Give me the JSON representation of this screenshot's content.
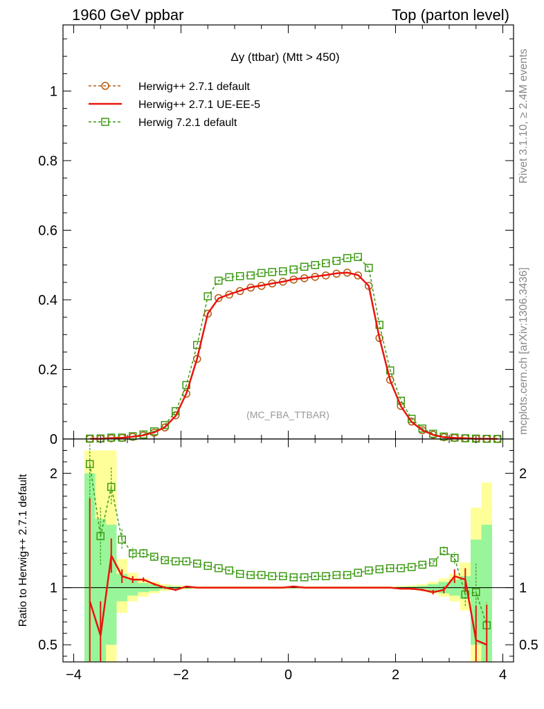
{
  "header": {
    "left": "1960 GeV ppbar",
    "right": "Top (parton level)"
  },
  "side_labels": {
    "rivet": "Rivet 3.1.10, ≥ 2.4M events",
    "source": "mcplots.cern.ch [arXiv:1306.3436]"
  },
  "chart_data": {
    "type": "line",
    "title": "Δy (ttbar) (Mtt > 450)",
    "watermark": "(MC_FBA_TTBAR)",
    "colors": {
      "default": "#b35a10",
      "ueee5": "#e8140c",
      "h7": "#3a9a10"
    },
    "legend": [
      "Herwig++ 2.7.1 default",
      "Herwig++ 2.7.1 UE-EE-5",
      "Herwig 7.2.1 default"
    ],
    "main": {
      "xlim": [
        -4.2,
        4.2
      ],
      "ylim": [
        0,
        1.19
      ],
      "yticks": [
        0,
        0.2,
        0.4,
        0.6,
        0.8,
        1
      ],
      "ytick_labels": [
        "0",
        "0.2",
        "0.4",
        "0.6",
        "0.8",
        "1"
      ],
      "x": [
        -3.7,
        -3.5,
        -3.3,
        -3.1,
        -2.9,
        -2.7,
        -2.5,
        -2.3,
        -2.1,
        -1.9,
        -1.7,
        -1.5,
        -1.3,
        -1.1,
        -0.9,
        -0.7,
        -0.5,
        -0.3,
        -0.1,
        0.1,
        0.3,
        0.5,
        0.7,
        0.9,
        1.1,
        1.3,
        1.5,
        1.7,
        1.9,
        2.1,
        2.3,
        2.5,
        2.7,
        2.9,
        3.1,
        3.3,
        3.5,
        3.7,
        3.9
      ],
      "series": [
        {
          "name": "Herwig++ 2.7.1 default",
          "style": "circle",
          "values": [
            0.0005,
            0.001,
            0.002,
            0.003,
            0.006,
            0.01,
            0.018,
            0.033,
            0.068,
            0.13,
            0.23,
            0.36,
            0.405,
            0.415,
            0.425,
            0.435,
            0.44,
            0.447,
            0.452,
            0.458,
            0.462,
            0.466,
            0.47,
            0.475,
            0.478,
            0.47,
            0.44,
            0.29,
            0.17,
            0.095,
            0.05,
            0.025,
            0.012,
            0.005,
            0.003,
            0.002,
            0.001,
            0.0005,
            0.0002
          ]
        },
        {
          "name": "Herwig++ 2.7.1 UE-EE-5",
          "style": "line",
          "values": [
            0.0004,
            0.0006,
            0.0025,
            0.0033,
            0.0064,
            0.0105,
            0.019,
            0.034,
            0.066,
            0.131,
            0.231,
            0.361,
            0.404,
            0.416,
            0.426,
            0.436,
            0.441,
            0.447,
            0.452,
            0.459,
            0.462,
            0.467,
            0.471,
            0.476,
            0.478,
            0.471,
            0.44,
            0.29,
            0.168,
            0.094,
            0.049,
            0.025,
            0.012,
            0.005,
            0.0032,
            0.0022,
            0.0005,
            0.0003,
            0.0001
          ]
        },
        {
          "name": "Herwig 7.2.1 default",
          "style": "square",
          "values": [
            0.001,
            0.0015,
            0.004,
            0.004,
            0.008,
            0.013,
            0.022,
            0.04,
            0.08,
            0.155,
            0.27,
            0.41,
            0.455,
            0.465,
            0.468,
            0.47,
            0.477,
            0.48,
            0.482,
            0.487,
            0.495,
            0.5,
            0.505,
            0.512,
            0.52,
            0.523,
            0.492,
            0.328,
            0.197,
            0.11,
            0.058,
            0.03,
            0.015,
            0.007,
            0.004,
            0.002,
            0.001,
            0.0005,
            0.0002
          ]
        }
      ]
    },
    "ratio": {
      "ylabel": "Ratio to Herwig++ 2.7.1 default",
      "ylim": [
        0.35,
        2.3
      ],
      "yticks": [
        0.5,
        1,
        2
      ],
      "ytick_labels": [
        "0.5",
        "1",
        "2"
      ],
      "xticks": [
        -4,
        -2,
        0,
        2,
        4
      ],
      "xtick_labels": [
        "−4",
        "−2",
        "0",
        "2",
        "4"
      ],
      "band_edges": [
        -3.8,
        -3.6,
        -3.4,
        -3.2,
        -3.0,
        -2.8,
        -2.6,
        -2.4,
        -2.2,
        -2.0,
        -1.8,
        -1.6,
        -1.4,
        -1.2,
        -1.0,
        -0.8,
        -0.6,
        -0.4,
        -0.2,
        0.0,
        0.2,
        0.4,
        0.6,
        0.8,
        1.0,
        1.2,
        1.4,
        1.6,
        1.8,
        2.0,
        2.2,
        2.4,
        2.6,
        2.8,
        3.0,
        3.2,
        3.4,
        3.6,
        3.8
      ],
      "band_yellow_lo": [
        0.3,
        0.3,
        0.3,
        0.78,
        0.88,
        0.92,
        0.95,
        0.97,
        0.98,
        0.985,
        0.99,
        0.99,
        0.99,
        0.99,
        0.99,
        0.99,
        0.99,
        0.99,
        0.99,
        0.99,
        0.99,
        0.99,
        0.99,
        0.99,
        0.99,
        0.99,
        0.99,
        0.99,
        0.99,
        0.985,
        0.98,
        0.97,
        0.95,
        0.92,
        0.88,
        0.8,
        0.3,
        0.3
      ],
      "band_yellow_hi": [
        2.2,
        2.2,
        2.2,
        1.25,
        1.13,
        1.08,
        1.05,
        1.03,
        1.02,
        1.015,
        1.01,
        1.01,
        1.01,
        1.01,
        1.01,
        1.01,
        1.01,
        1.01,
        1.01,
        1.01,
        1.01,
        1.01,
        1.01,
        1.01,
        1.01,
        1.01,
        1.01,
        1.01,
        1.01,
        1.015,
        1.02,
        1.03,
        1.05,
        1.08,
        1.12,
        1.22,
        1.7,
        1.92
      ],
      "band_green_lo": [
        0.3,
        0.3,
        0.5,
        0.88,
        0.93,
        0.96,
        0.97,
        0.985,
        0.99,
        0.993,
        0.995,
        0.995,
        0.995,
        0.995,
        0.995,
        0.995,
        0.995,
        0.995,
        0.995,
        0.995,
        0.995,
        0.995,
        0.995,
        0.995,
        0.995,
        0.995,
        0.995,
        0.995,
        0.995,
        0.993,
        0.99,
        0.985,
        0.97,
        0.95,
        0.93,
        0.9,
        0.5,
        0.3
      ],
      "band_green_hi": [
        2.0,
        1.6,
        1.55,
        1.12,
        1.07,
        1.04,
        1.03,
        1.015,
        1.01,
        1.007,
        1.005,
        1.005,
        1.005,
        1.005,
        1.005,
        1.005,
        1.005,
        1.005,
        1.005,
        1.005,
        1.005,
        1.005,
        1.005,
        1.005,
        1.005,
        1.005,
        1.005,
        1.005,
        1.005,
        1.007,
        1.01,
        1.015,
        1.03,
        1.05,
        1.07,
        1.1,
        1.42,
        1.55
      ],
      "x": [
        -3.7,
        -3.5,
        -3.3,
        -3.1,
        -2.9,
        -2.7,
        -2.5,
        -2.3,
        -2.1,
        -1.9,
        -1.7,
        -1.5,
        -1.3,
        -1.1,
        -0.9,
        -0.7,
        -0.5,
        -0.3,
        -0.1,
        0.1,
        0.3,
        0.5,
        0.7,
        0.9,
        1.1,
        1.3,
        1.5,
        1.7,
        1.9,
        2.1,
        2.3,
        2.5,
        2.7,
        2.9,
        3.1,
        3.3,
        3.5,
        3.7
      ],
      "series": [
        {
          "name": "Herwig++ 2.7.1 UE-EE-5",
          "values": [
            0.88,
            0.58,
            1.28,
            1.1,
            1.07,
            1.07,
            1.03,
            1.0,
            0.98,
            1.01,
            1.0,
            1.0,
            1.0,
            1.0,
            1.0,
            1.0,
            1.0,
            1.0,
            1.0,
            1.01,
            1.0,
            1.0,
            1.0,
            1.0,
            1.0,
            1.0,
            1.0,
            1.0,
            1.0,
            0.99,
            0.99,
            0.98,
            0.96,
            0.98,
            1.1,
            1.07,
            0.54,
            0.5
          ],
          "err_lo": [
            0.6,
            0.45,
            0.15,
            0.06,
            0.03,
            0.02,
            0.01,
            0.01,
            0.01,
            0.006,
            0.004,
            0.004,
            0.004,
            0.004,
            0.004,
            0.004,
            0.004,
            0.004,
            0.004,
            0.004,
            0.004,
            0.004,
            0.004,
            0.004,
            0.004,
            0.004,
            0.004,
            0.004,
            0.004,
            0.006,
            0.01,
            0.01,
            0.02,
            0.03,
            0.06,
            0.1,
            0.3,
            0.3
          ],
          "err_hi": [
            0.9,
            0.3,
            0.15,
            0.06,
            0.03,
            0.02,
            0.01,
            0.01,
            0.01,
            0.006,
            0.004,
            0.004,
            0.004,
            0.004,
            0.004,
            0.004,
            0.004,
            0.004,
            0.004,
            0.004,
            0.004,
            0.004,
            0.004,
            0.004,
            0.004,
            0.004,
            0.004,
            0.004,
            0.004,
            0.006,
            0.01,
            0.01,
            0.02,
            0.03,
            0.06,
            0.1,
            0.3,
            0.35
          ]
        },
        {
          "name": "Herwig 7.2.1 default",
          "values": [
            2.08,
            1.45,
            1.88,
            1.42,
            1.3,
            1.3,
            1.27,
            1.24,
            1.23,
            1.23,
            1.21,
            1.19,
            1.17,
            1.15,
            1.12,
            1.11,
            1.11,
            1.1,
            1.1,
            1.09,
            1.09,
            1.1,
            1.1,
            1.11,
            1.11,
            1.13,
            1.15,
            1.16,
            1.17,
            1.17,
            1.18,
            1.2,
            1.22,
            1.32,
            1.26,
            0.94,
            0.96,
            0.67
          ],
          "err_lo": [
            0.3,
            0.25,
            0.15,
            0.08,
            0.05,
            0.04,
            0.03,
            0.02,
            0.015,
            0.01,
            0.01,
            0.01,
            0.01,
            0.01,
            0.01,
            0.01,
            0.01,
            0.01,
            0.01,
            0.01,
            0.01,
            0.01,
            0.01,
            0.01,
            0.01,
            0.01,
            0.01,
            0.01,
            0.01,
            0.01,
            0.01,
            0.015,
            0.02,
            0.04,
            0.05,
            0.1,
            0.25,
            0.2
          ],
          "err_hi": [
            0.3,
            0.25,
            0.18,
            0.1,
            0.05,
            0.04,
            0.03,
            0.02,
            0.015,
            0.01,
            0.01,
            0.01,
            0.01,
            0.01,
            0.01,
            0.01,
            0.01,
            0.01,
            0.01,
            0.01,
            0.01,
            0.01,
            0.01,
            0.01,
            0.01,
            0.01,
            0.01,
            0.01,
            0.01,
            0.01,
            0.01,
            0.015,
            0.02,
            0.04,
            0.05,
            0.1,
            0.25,
            0.2
          ]
        }
      ]
    }
  }
}
